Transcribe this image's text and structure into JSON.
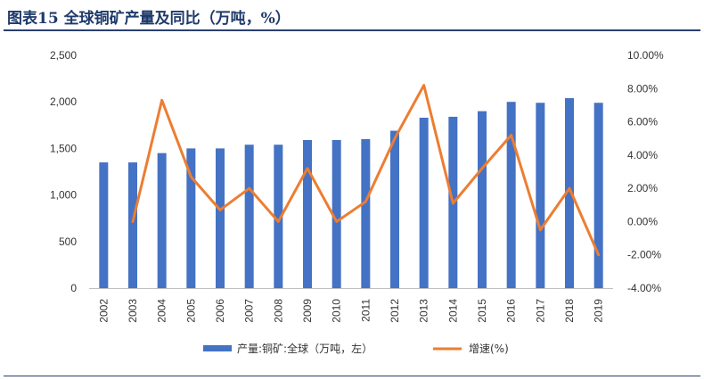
{
  "header": {
    "figure_title": "图表15  全球铜矿产量及同比（万吨，%）"
  },
  "chart_data": {
    "type": "bar",
    "categories": [
      "2002",
      "2003",
      "2004",
      "2005",
      "2006",
      "2007",
      "2008",
      "2009",
      "2010",
      "2011",
      "2012",
      "2013",
      "2014",
      "2015",
      "2016",
      "2017",
      "2018",
      "2019"
    ],
    "series": [
      {
        "name": "产量:铜矿:全球（万吨，左）",
        "type": "bar",
        "axis": "left",
        "color": "#4472c4",
        "values": [
          1350,
          1350,
          1450,
          1500,
          1500,
          1540,
          1540,
          1590,
          1590,
          1600,
          1690,
          1830,
          1840,
          1900,
          2000,
          1990,
          2040,
          1990
        ]
      },
      {
        "name": "增速(%)",
        "type": "line",
        "axis": "right",
        "color": "#ed7d31",
        "values": [
          null,
          0.0,
          7.3,
          2.7,
          0.7,
          2.0,
          0.0,
          3.2,
          0.0,
          1.2,
          5.0,
          8.2,
          1.1,
          3.2,
          5.2,
          -0.5,
          2.0,
          -2.0
        ]
      }
    ],
    "left_axis": {
      "ylim": [
        0,
        2500
      ],
      "ticks": [
        0,
        500,
        1000,
        1500,
        2000,
        2500
      ],
      "tick_labels": [
        "0",
        "500",
        "1,000",
        "1,500",
        "2,000",
        "2,500"
      ]
    },
    "right_axis": {
      "ylim": [
        -4,
        10
      ],
      "ticks": [
        -4,
        -2,
        0,
        2,
        4,
        6,
        8,
        10
      ],
      "tick_labels": [
        "-4.00%",
        "-2.00%",
        "0.00%",
        "2.00%",
        "4.00%",
        "6.00%",
        "8.00%",
        "10.00%"
      ]
    },
    "grid": false,
    "legend_placement": "bottom"
  }
}
